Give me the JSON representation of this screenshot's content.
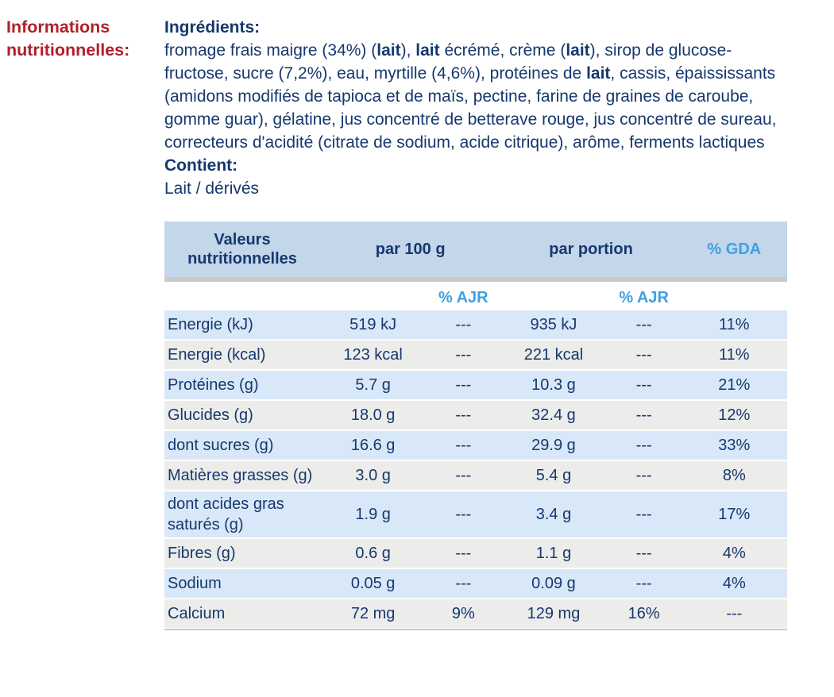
{
  "section": {
    "label": "Informations nutritionnelles:"
  },
  "ingredients": {
    "heading": "Ingrédients:",
    "segments": [
      {
        "text": "fromage frais maigre (34%) (",
        "bold": false
      },
      {
        "text": "lait",
        "bold": true
      },
      {
        "text": "), ",
        "bold": false
      },
      {
        "text": "lait",
        "bold": true
      },
      {
        "text": " écrémé, crème (",
        "bold": false
      },
      {
        "text": "lait",
        "bold": true
      },
      {
        "text": "), sirop de glucose-fructose, sucre (7,2%), eau, myrtille (4,6%), protéines de ",
        "bold": false
      },
      {
        "text": "lait",
        "bold": true
      },
      {
        "text": ", cassis, épaississants (amidons modifiés de tapioca et de maïs, pectine, farine de graines de caroube, gomme guar), gélatine, jus concentré de betterave rouge, jus concentré de sureau, correcteurs d'acidité (citrate de sodium, acide citrique), arôme, ferments lactiques",
        "bold": false
      }
    ]
  },
  "contains": {
    "heading": "Contient:",
    "value": "Lait / dérivés"
  },
  "table": {
    "header": {
      "values_label": "Valeurs nutritionnelles",
      "per_100g": "par 100 g",
      "per_portion": "par portion",
      "gda": "% GDA",
      "ajr_100g": "% AJR",
      "ajr_portion": "% AJR"
    },
    "rows": [
      {
        "label": "Energie (kJ)",
        "per_100g": "519 kJ",
        "ajr_100g": "---",
        "per_portion": "935 kJ",
        "ajr_portion": "---",
        "gda": "11%"
      },
      {
        "label": "Energie (kcal)",
        "per_100g": "123 kcal",
        "ajr_100g": "---",
        "per_portion": "221 kcal",
        "ajr_portion": "---",
        "gda": "11%"
      },
      {
        "label": "Protéines (g)",
        "per_100g": "5.7 g",
        "ajr_100g": "---",
        "per_portion": "10.3 g",
        "ajr_portion": "---",
        "gda": "21%"
      },
      {
        "label": "Glucides (g)",
        "per_100g": "18.0 g",
        "ajr_100g": "---",
        "per_portion": "32.4 g",
        "ajr_portion": "---",
        "gda": "12%"
      },
      {
        "label": "dont sucres (g)",
        "per_100g": "16.6 g",
        "ajr_100g": "---",
        "per_portion": "29.9 g",
        "ajr_portion": "---",
        "gda": "33%"
      },
      {
        "label": "Matières grasses (g)",
        "per_100g": "3.0 g",
        "ajr_100g": "---",
        "per_portion": "5.4 g",
        "ajr_portion": "---",
        "gda": "8%"
      },
      {
        "label": "dont acides gras saturés (g)",
        "per_100g": "1.9 g",
        "ajr_100g": "---",
        "per_portion": "3.4 g",
        "ajr_portion": "---",
        "gda": "17%"
      },
      {
        "label": "Fibres (g)",
        "per_100g": "0.6 g",
        "ajr_100g": "---",
        "per_portion": "1.1 g",
        "ajr_portion": "---",
        "gda": "4%"
      },
      {
        "label": "Sodium",
        "per_100g": "0.05 g",
        "ajr_100g": "---",
        "per_portion": "0.09 g",
        "ajr_portion": "---",
        "gda": "4%"
      },
      {
        "label": "Calcium",
        "per_100g": "72 mg",
        "ajr_100g": "9%",
        "per_portion": "129 mg",
        "ajr_portion": "16%",
        "gda": "---"
      }
    ]
  },
  "colors": {
    "section_label_red": "#b01f28",
    "text_navy": "#16386e",
    "accent_light_blue": "#3fa0e4",
    "table_header_bg": "#c3d6ea",
    "row_blue": "#d9e8f8",
    "row_gray": "#ececea",
    "separator_gray": "#c9c9c5"
  }
}
